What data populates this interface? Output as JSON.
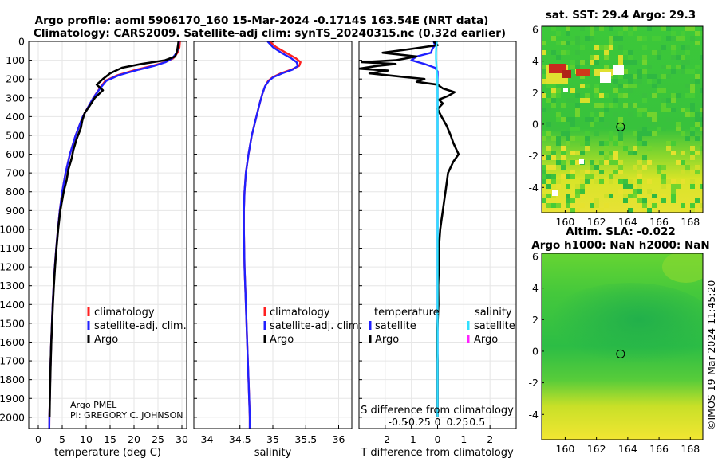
{
  "title": {
    "line1": "Argo profile: aoml 5906170_160 15-Mar-2024 -0.1714S 163.54E (NRT data)",
    "line2": "Climatology: CARS2009. Satellite-adj clim: synTS_20240315.nc (0.32d earlier)"
  },
  "credits": {
    "line1": "Argo PMEL",
    "line2": "PI: GREGORY C. JOHNSON"
  },
  "timestamp": "©IMOS 19-Mar-2024 11:45:20",
  "colors": {
    "climatology": "#ff2020",
    "satellite": "#2020ff",
    "argo": "#000000",
    "sat_salinity": "#30e0ff",
    "argo_salinity": "#ff20ff"
  },
  "chart_data": [
    {
      "type": "line",
      "name": "temperature-profile",
      "xlabel": "temperature (deg C)",
      "xlim": [
        -2,
        31
      ],
      "ylim": [
        2060,
        0
      ],
      "xticks": [
        0,
        5,
        10,
        15,
        20,
        25,
        30
      ],
      "yticks": [
        0,
        100,
        200,
        300,
        400,
        500,
        600,
        700,
        800,
        900,
        1000,
        1100,
        1200,
        1300,
        1400,
        1500,
        1600,
        1700,
        1800,
        1900,
        2000
      ],
      "legend": [
        "climatology",
        "satellite-adj. clim.",
        "Argo"
      ],
      "series": [
        {
          "name": "climatology",
          "color": "#ff2020",
          "depth": [
            0,
            30,
            60,
            90,
            110,
            130,
            150,
            180,
            210,
            250,
            300,
            350,
            400,
            500,
            600,
            700,
            800,
            900,
            1000,
            1100,
            1200,
            1300,
            1400,
            1500,
            1600,
            1700,
            1800,
            1900,
            2000,
            2060
          ],
          "values": [
            29.6,
            29.5,
            29.1,
            28.2,
            26.5,
            23.8,
            20.5,
            16.5,
            14.0,
            12.8,
            11.5,
            10.4,
            9.3,
            7.8,
            6.6,
            5.7,
            5.0,
            4.5,
            4.1,
            3.75,
            3.45,
            3.2,
            3.0,
            2.85,
            2.7,
            2.58,
            2.48,
            2.4,
            2.32,
            2.3
          ]
        },
        {
          "name": "satellite-adj. clim.",
          "color": "#2020ff",
          "depth": [
            0,
            30,
            60,
            90,
            110,
            130,
            150,
            180,
            210,
            250,
            300,
            350,
            400,
            500,
            600,
            700,
            800,
            900,
            1000,
            1100,
            1200,
            1300,
            1400,
            1500,
            1600,
            1700,
            1800,
            1900,
            2000,
            2060
          ],
          "values": [
            29.4,
            29.3,
            28.9,
            28.0,
            26.6,
            24.2,
            21.0,
            16.8,
            14.2,
            12.9,
            11.5,
            10.4,
            9.3,
            7.8,
            6.6,
            5.7,
            5.0,
            4.5,
            4.1,
            3.75,
            3.45,
            3.2,
            3.0,
            2.85,
            2.7,
            2.58,
            2.48,
            2.4,
            2.32,
            2.3
          ]
        },
        {
          "name": "Argo",
          "color": "#000000",
          "depth": [
            0,
            20,
            50,
            80,
            100,
            120,
            140,
            170,
            200,
            230,
            260,
            300,
            340,
            380,
            420,
            460,
            520,
            580,
            620,
            680,
            740,
            800,
            900,
            1000,
            1100,
            1200,
            1300,
            1400,
            1500,
            1600,
            1700,
            1800,
            1900,
            2000
          ],
          "values": [
            29.3,
            29.2,
            29.0,
            28.6,
            26.5,
            21.5,
            17.5,
            15.0,
            13.5,
            12.2,
            13.5,
            11.8,
            10.8,
            9.7,
            9.2,
            8.9,
            8.0,
            7.3,
            7.0,
            6.3,
            5.9,
            5.3,
            4.6,
            4.15,
            3.8,
            3.5,
            3.25,
            3.05,
            2.88,
            2.72,
            2.6,
            2.5,
            2.42,
            2.35
          ]
        }
      ]
    },
    {
      "type": "line",
      "name": "salinity-profile",
      "xlabel": "salinity",
      "xlim": [
        33.8,
        36.2
      ],
      "ylim": [
        2060,
        0
      ],
      "xticks": [
        34,
        34.5,
        35,
        35.5,
        36
      ],
      "legend": [
        "climatology",
        "satellite-adj. clim.",
        "Argo"
      ],
      "series": [
        {
          "name": "climatology",
          "color": "#ff2020",
          "depth": [
            0,
            30,
            60,
            90,
            110,
            130,
            150,
            170,
            190,
            210,
            240,
            280,
            330,
            400,
            500,
            600,
            700,
            800,
            900,
            1000,
            1200,
            1400,
            1600,
            1800,
            2000,
            2060
          ],
          "values": [
            34.95,
            35.05,
            35.2,
            35.35,
            35.42,
            35.4,
            35.28,
            35.12,
            35.0,
            34.93,
            34.88,
            34.84,
            34.8,
            34.75,
            34.68,
            34.63,
            34.59,
            34.57,
            34.56,
            34.56,
            34.57,
            34.59,
            34.61,
            34.63,
            34.65,
            34.65
          ]
        },
        {
          "name": "satellite-adj. clim.",
          "color": "#2020ff",
          "depth": [
            0,
            30,
            60,
            90,
            110,
            130,
            150,
            170,
            190,
            210,
            240,
            280,
            330,
            400,
            500,
            600,
            700,
            800,
            900,
            1000,
            1200,
            1400,
            1600,
            1800,
            2000,
            2060
          ],
          "values": [
            34.92,
            35.0,
            35.13,
            35.28,
            35.36,
            35.38,
            35.3,
            35.14,
            35.01,
            34.94,
            34.88,
            34.84,
            34.8,
            34.75,
            34.68,
            34.63,
            34.59,
            34.57,
            34.56,
            34.56,
            34.57,
            34.59,
            34.61,
            34.63,
            34.65,
            34.65
          ]
        },
        {
          "name": "Argo",
          "color": "#000000",
          "depth": [
            0,
            5
          ],
          "values": [
            35.0,
            35.0
          ]
        }
      ]
    },
    {
      "type": "line",
      "name": "difference-profile",
      "xlabel": "T difference from climatology",
      "xlabel2": "S difference from climatology",
      "xlim": [
        -3,
        3
      ],
      "ylim": [
        2060,
        0
      ],
      "xticks": [
        -2,
        -1,
        0,
        1,
        2
      ],
      "sticks": [
        -0.5,
        -0.25,
        0,
        0.25,
        0.5
      ],
      "sticklabels": [
        "-0.5",
        "-0.25",
        "0",
        "0.25",
        "0.5"
      ],
      "legend_groups": [
        "temperature",
        "salinity"
      ],
      "legend": [
        "satellite",
        "Argo",
        "satellite",
        "Argo"
      ],
      "series": [
        {
          "name": "T satellite",
          "color": "#2020ff",
          "depth": [
            0,
            20,
            40,
            60,
            80,
            100,
            120,
            140,
            160,
            180,
            200,
            2000
          ],
          "values": [
            -0.15,
            -0.1,
            -0.2,
            -0.25,
            -0.8,
            -1.0,
            -0.5,
            -0.1,
            0.0,
            0.0,
            0.0,
            0.0
          ]
        },
        {
          "name": "T Argo",
          "color": "#000000",
          "depth": [
            0,
            20,
            40,
            60,
            80,
            100,
            110,
            120,
            130,
            145,
            155,
            170,
            185,
            200,
            215,
            230,
            250,
            270,
            290,
            310,
            330,
            360,
            400,
            450,
            500,
            540,
            570,
            600,
            640,
            700,
            750,
            800,
            850,
            900,
            950,
            1000,
            1100,
            1200,
            1300,
            1400,
            1500,
            1600,
            1700,
            1800,
            1900,
            2000
          ],
          "values": [
            -0.15,
            0.0,
            -1.0,
            -2.1,
            -0.8,
            -1.6,
            -2.9,
            -1.6,
            -2.3,
            -3.0,
            -1.9,
            -2.6,
            -1.6,
            -0.5,
            -0.8,
            0.0,
            0.2,
            0.65,
            0.4,
            0.05,
            0.2,
            0.0,
            0.15,
            0.35,
            0.5,
            0.6,
            0.7,
            0.8,
            0.6,
            0.4,
            0.35,
            0.3,
            0.25,
            0.2,
            0.15,
            0.1,
            0.05,
            0.05,
            0.02,
            0.03,
            0.0,
            -0.02,
            0.0,
            0.0,
            0.0,
            0.0
          ]
        },
        {
          "name": "S satellite",
          "color": "#30e0ff",
          "depth": [
            0,
            30,
            60,
            90,
            120,
            160,
            200,
            300,
            500,
            800,
            1200,
            1600,
            2000
          ],
          "values": [
            -0.03,
            -0.05,
            -0.06,
            -0.06,
            -0.05,
            -0.03,
            -0.01,
            0.0,
            0.0,
            0.0,
            0.0,
            0.0,
            0.0
          ]
        }
      ]
    },
    {
      "type": "heatmap",
      "name": "sst-map",
      "title": "sat. SST: 29.4 Argo: 29.3",
      "xlim": [
        158.5,
        168.8
      ],
      "ylim": [
        -5.6,
        6.2
      ],
      "xticks": [
        160,
        162,
        164,
        166,
        168
      ],
      "yticks": [
        -4,
        -2,
        0,
        2,
        4
      ],
      "marker": {
        "lon": 163.54,
        "lat": -0.1714
      }
    },
    {
      "type": "heatmap",
      "name": "sla-map",
      "title": "Altim. SLA: -0.022",
      "title2": "Argo h1000: NaN h2000: NaN",
      "xlim": [
        158.5,
        168.8
      ],
      "ylim": [
        -5.6,
        6.2
      ],
      "xticks": [
        160,
        162,
        164,
        166,
        168
      ],
      "yticks": [
        -4,
        -2,
        0,
        2,
        4
      ],
      "marker": {
        "lon": 163.54,
        "lat": -0.1714
      }
    }
  ]
}
